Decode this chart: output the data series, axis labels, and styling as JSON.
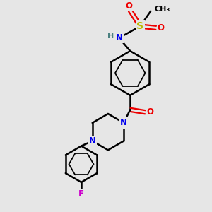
{
  "bg_color": "#e6e6e6",
  "colors": {
    "C": "#000000",
    "N": "#0000ee",
    "O": "#ee0000",
    "F": "#cc00cc",
    "S": "#bbbb00",
    "H": "#4a8080",
    "bond": "#000000"
  },
  "bond_lw": 1.8,
  "font_size": 8.5
}
